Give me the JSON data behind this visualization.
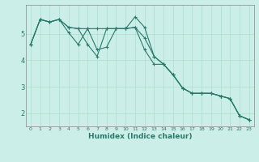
{
  "xlabel": "Humidex (Indice chaleur)",
  "ylabel": "",
  "background_color": "#cceee8",
  "grid_color": "#aaddcc",
  "line_color": "#2a7a6a",
  "xlim": [
    -0.5,
    23.5
  ],
  "ylim": [
    1.5,
    6.1
  ],
  "yticks": [
    2,
    3,
    4,
    5
  ],
  "xticks": [
    0,
    1,
    2,
    3,
    4,
    5,
    6,
    7,
    8,
    9,
    10,
    11,
    12,
    13,
    14,
    15,
    16,
    17,
    18,
    19,
    20,
    21,
    22,
    23
  ],
  "series": [
    [
      4.6,
      5.55,
      5.45,
      5.55,
      5.25,
      5.2,
      4.6,
      4.15,
      5.2,
      5.2,
      5.2,
      5.65,
      5.25,
      4.15,
      3.85,
      3.45,
      2.95,
      2.75,
      2.75,
      2.75,
      2.65,
      2.55,
      1.9,
      1.75
    ],
    [
      4.6,
      5.55,
      5.45,
      5.55,
      5.05,
      4.6,
      5.2,
      4.4,
      4.5,
      5.2,
      5.2,
      5.25,
      4.4,
      3.85,
      3.85,
      3.45,
      2.95,
      2.75,
      2.75,
      2.75,
      2.65,
      2.55,
      1.9,
      1.75
    ],
    [
      4.6,
      5.55,
      5.45,
      5.55,
      5.25,
      5.2,
      5.2,
      5.2,
      5.2,
      5.2,
      5.2,
      5.25,
      4.85,
      4.15,
      3.85,
      3.45,
      2.95,
      2.75,
      2.75,
      2.75,
      2.65,
      2.55,
      1.9,
      1.75
    ]
  ]
}
